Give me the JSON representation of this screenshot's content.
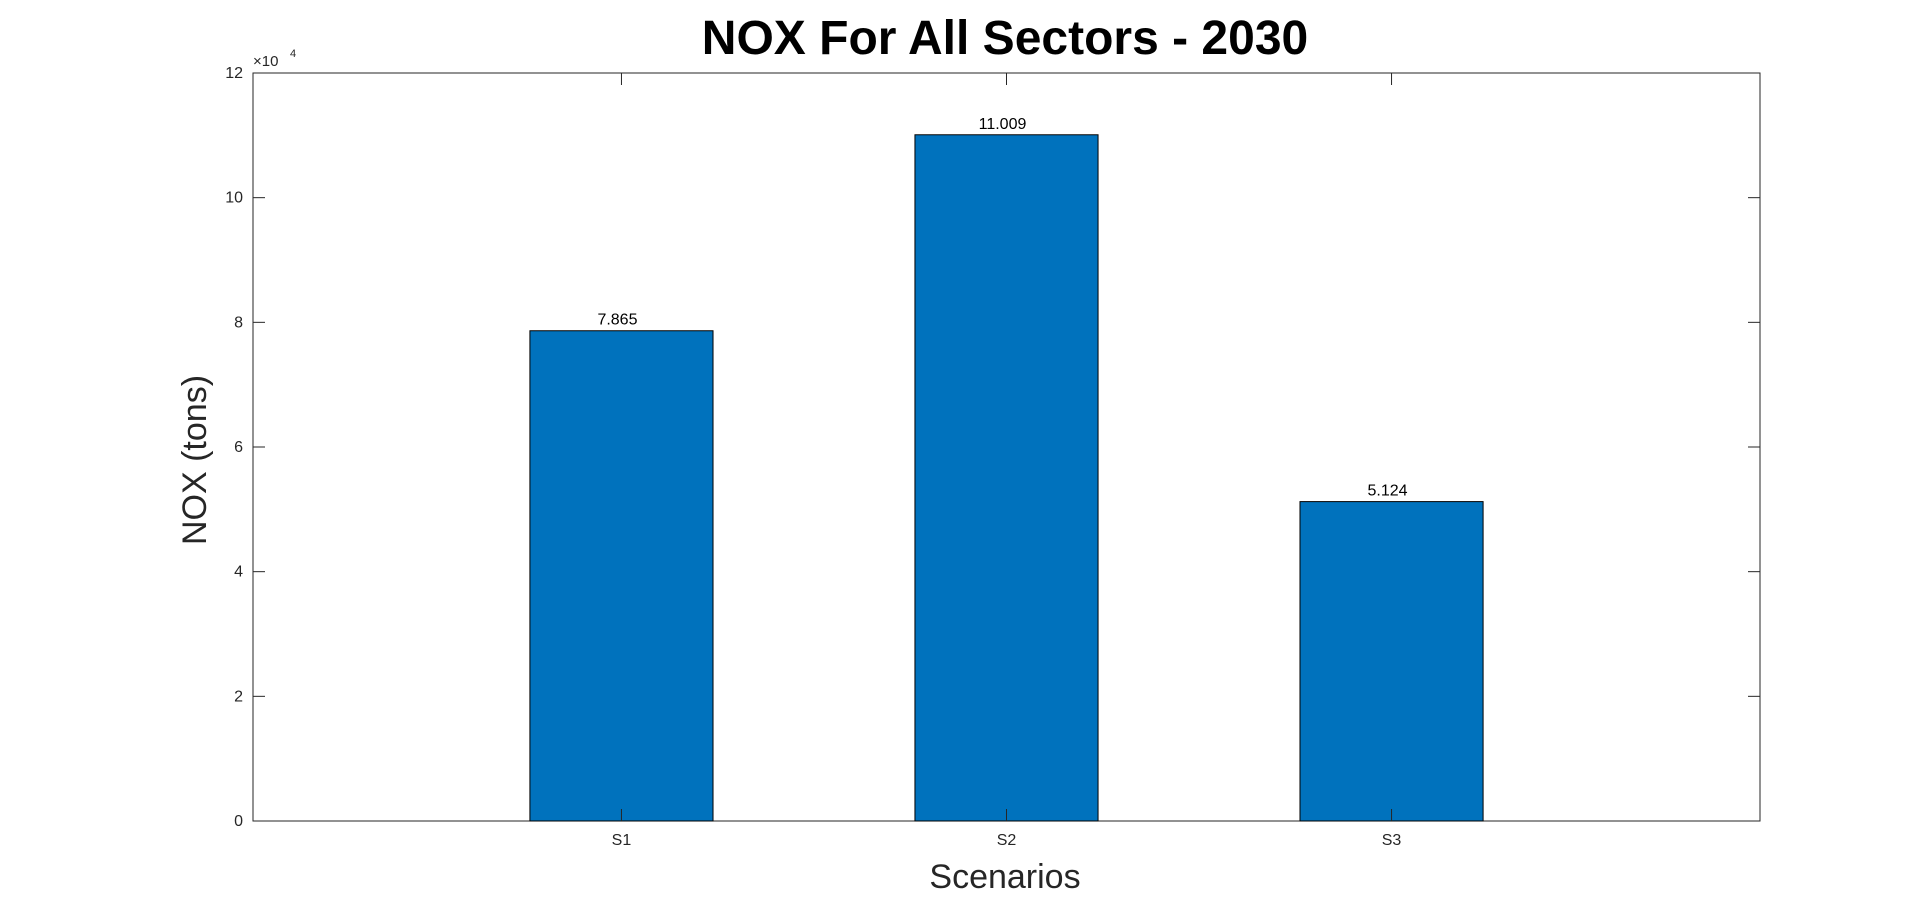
{
  "chart_data": {
    "type": "bar",
    "title": "NOX For All Sectors - 2030",
    "xlabel": "Scenarios",
    "ylabel": "NOX (tons)",
    "categories": [
      "S1",
      "S2",
      "S3"
    ],
    "values": [
      78650,
      110090,
      51240
    ],
    "data_labels": [
      "7.865",
      "11.009",
      "5.124"
    ],
    "ylim": [
      0,
      120000
    ],
    "y_ticks": [
      0,
      2,
      4,
      6,
      8,
      10,
      12
    ],
    "y_exponent_base": "×10",
    "y_exponent_power": "4",
    "grid": false,
    "bar_color": "#0072BD",
    "edge_color": "#000000"
  }
}
